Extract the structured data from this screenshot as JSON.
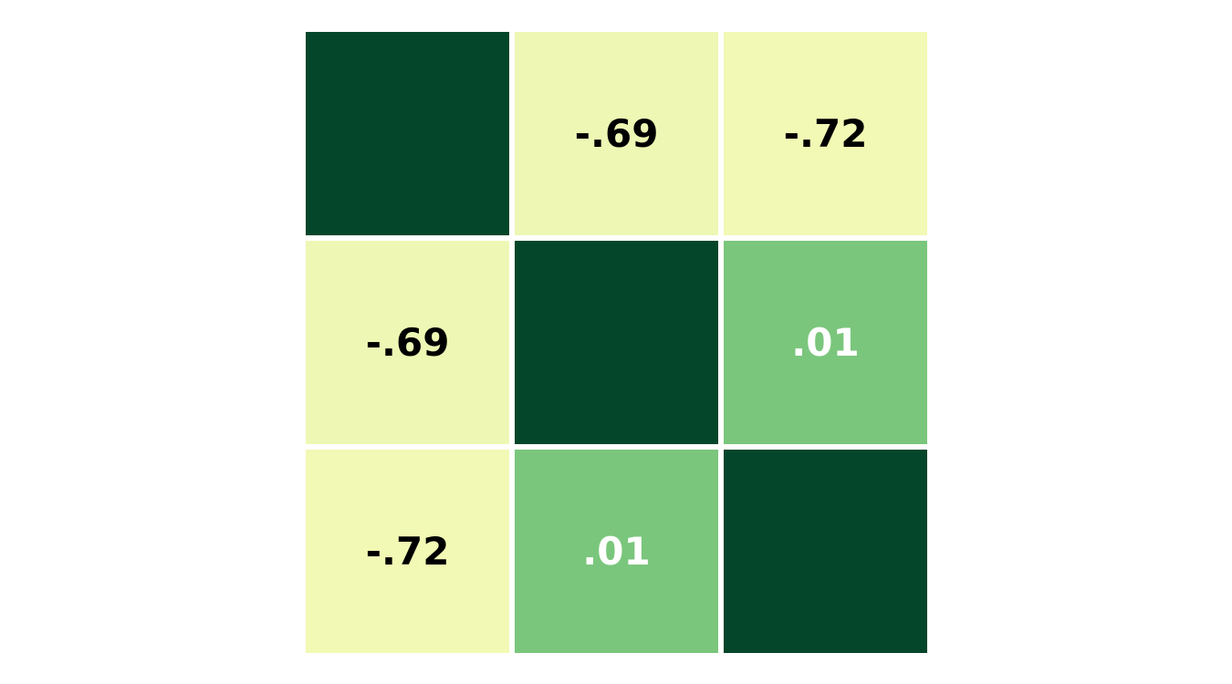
{
  "chart_data": {
    "type": "heatmap",
    "title": "",
    "xlabel": "",
    "ylabel": "",
    "matrix": [
      [
        null,
        -0.69,
        -0.72
      ],
      [
        -0.69,
        null,
        0.01
      ],
      [
        -0.72,
        0.01,
        null
      ]
    ],
    "labels": [
      [
        "",
        "-.69",
        "-.72"
      ],
      [
        "-.69",
        "",
        ".01"
      ],
      [
        "-.72",
        ".01",
        ""
      ]
    ],
    "cell_colors": [
      [
        "#04462a",
        "#eef8b4",
        "#f2f9b4"
      ],
      [
        "#eef8b4",
        "#04462a",
        "#7ac67c"
      ],
      [
        "#f2f9b4",
        "#7ac67c",
        "#04462a"
      ]
    ],
    "label_colors": [
      [
        "#ffffff",
        "#000000",
        "#000000"
      ],
      [
        "#000000",
        "#ffffff",
        "#ffffff"
      ],
      [
        "#000000",
        "#ffffff",
        "#ffffff"
      ]
    ],
    "diagonal_color": "#04462a",
    "grid_line_color": "#ffffff",
    "colorbar": false
  }
}
